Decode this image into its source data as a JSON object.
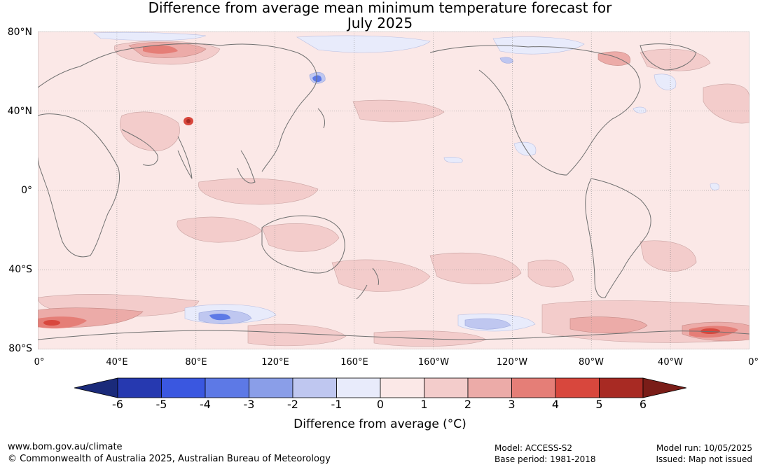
{
  "title_line1": "Difference from average mean minimum temperature forecast for",
  "title_line2": "July 2025",
  "lat_labels": [
    "80°N",
    "40°N",
    "0°",
    "40°S",
    "80°S"
  ],
  "lon_labels": [
    "0°",
    "40°E",
    "80°E",
    "120°E",
    "160°E",
    "160°W",
    "120°W",
    "80°W",
    "40°W",
    "0°"
  ],
  "colorbar": {
    "ticks": [
      "-6",
      "-5",
      "-4",
      "-3",
      "-2",
      "-1",
      "0",
      "1",
      "2",
      "3",
      "4",
      "5",
      "6"
    ],
    "colors": [
      "#1a2a7a",
      "#2639b0",
      "#3a57e0",
      "#5d79e6",
      "#8a9ee8",
      "#bfc7f0",
      "#e8ebfb",
      "#fbe8e7",
      "#f3cccb",
      "#ecaba8",
      "#e57e77",
      "#d8473d",
      "#a82a23",
      "#7a1d18"
    ],
    "title": "Difference from average (°C)"
  },
  "footer": {
    "url": "www.bom.gov.au/climate",
    "copyright": "© Commonwealth of Australia 2025, Australian Bureau of Meteorology",
    "model": "Model: ACCESS-S2",
    "base_period": "Base period: 1981-2018",
    "model_run": "Model run: 10/05/2025",
    "issued": "Issued: Map not issued"
  }
}
